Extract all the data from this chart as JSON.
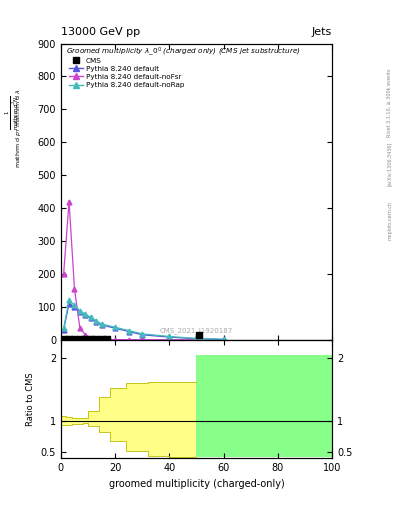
{
  "title": "13000 GeV pp",
  "title_right": "Jets",
  "xlabel": "groomed multiplicity (charged-only)",
  "ylabel_ratio": "Ratio to CMS",
  "watermark": "CMS_2021_I1920187",
  "rivet_label": "Rivet 3.1.10, ≥ 300k events",
  "arxiv_label": "[arXiv:1306.3436]",
  "mcplots_label": "mcplots.cern.ch",
  "cms_x": [
    1,
    3,
    5,
    7,
    9,
    11,
    13,
    15,
    17,
    51
  ],
  "cms_y": [
    2,
    2,
    2,
    2,
    2,
    2,
    2,
    2,
    2,
    15
  ],
  "pythia_default_x": [
    1,
    3,
    5,
    7,
    9,
    11,
    13,
    15,
    20,
    25,
    30,
    40,
    50,
    60
  ],
  "pythia_default_y": [
    30,
    110,
    100,
    85,
    75,
    65,
    55,
    45,
    35,
    25,
    15,
    8,
    3,
    1
  ],
  "pythia_nofsr_x": [
    1,
    3,
    5,
    7,
    9,
    11,
    13,
    15,
    20,
    25,
    30,
    40,
    50
  ],
  "pythia_nofsr_y": [
    200,
    420,
    155,
    35,
    15,
    5,
    2,
    1,
    0.5,
    0.2,
    0.05,
    0.01,
    0
  ],
  "pythia_norap_x": [
    1,
    3,
    5,
    7,
    9,
    11,
    13,
    15,
    20,
    25,
    30,
    40,
    50,
    60
  ],
  "pythia_norap_y": [
    35,
    120,
    105,
    88,
    78,
    68,
    58,
    48,
    38,
    28,
    18,
    10,
    4,
    1.5
  ],
  "color_default": "#5555dd",
  "color_nofsr": "#cc44cc",
  "color_norap": "#44bbbb",
  "color_cms": "black",
  "ylim_main": [
    0,
    900
  ],
  "ylim_ratio": [
    0.4,
    2.3
  ],
  "xlim": [
    0,
    100
  ],
  "yellow_bins_lo": [
    0,
    2,
    4,
    6,
    8,
    10,
    14,
    18,
    24,
    32,
    40
  ],
  "yellow_bins_hi": [
    2,
    4,
    6,
    8,
    10,
    14,
    18,
    24,
    32,
    40,
    50
  ],
  "yellow_lo": [
    0.93,
    0.94,
    0.95,
    0.95,
    0.96,
    0.91,
    0.82,
    0.68,
    0.52,
    0.44,
    0.42
  ],
  "yellow_hi": [
    1.07,
    1.06,
    1.05,
    1.05,
    1.04,
    1.15,
    1.38,
    1.52,
    1.6,
    1.62,
    1.62
  ],
  "green_lo": 0.42,
  "green_hi": 2.05,
  "green_x_start": 50,
  "background_color": "#ffffff"
}
